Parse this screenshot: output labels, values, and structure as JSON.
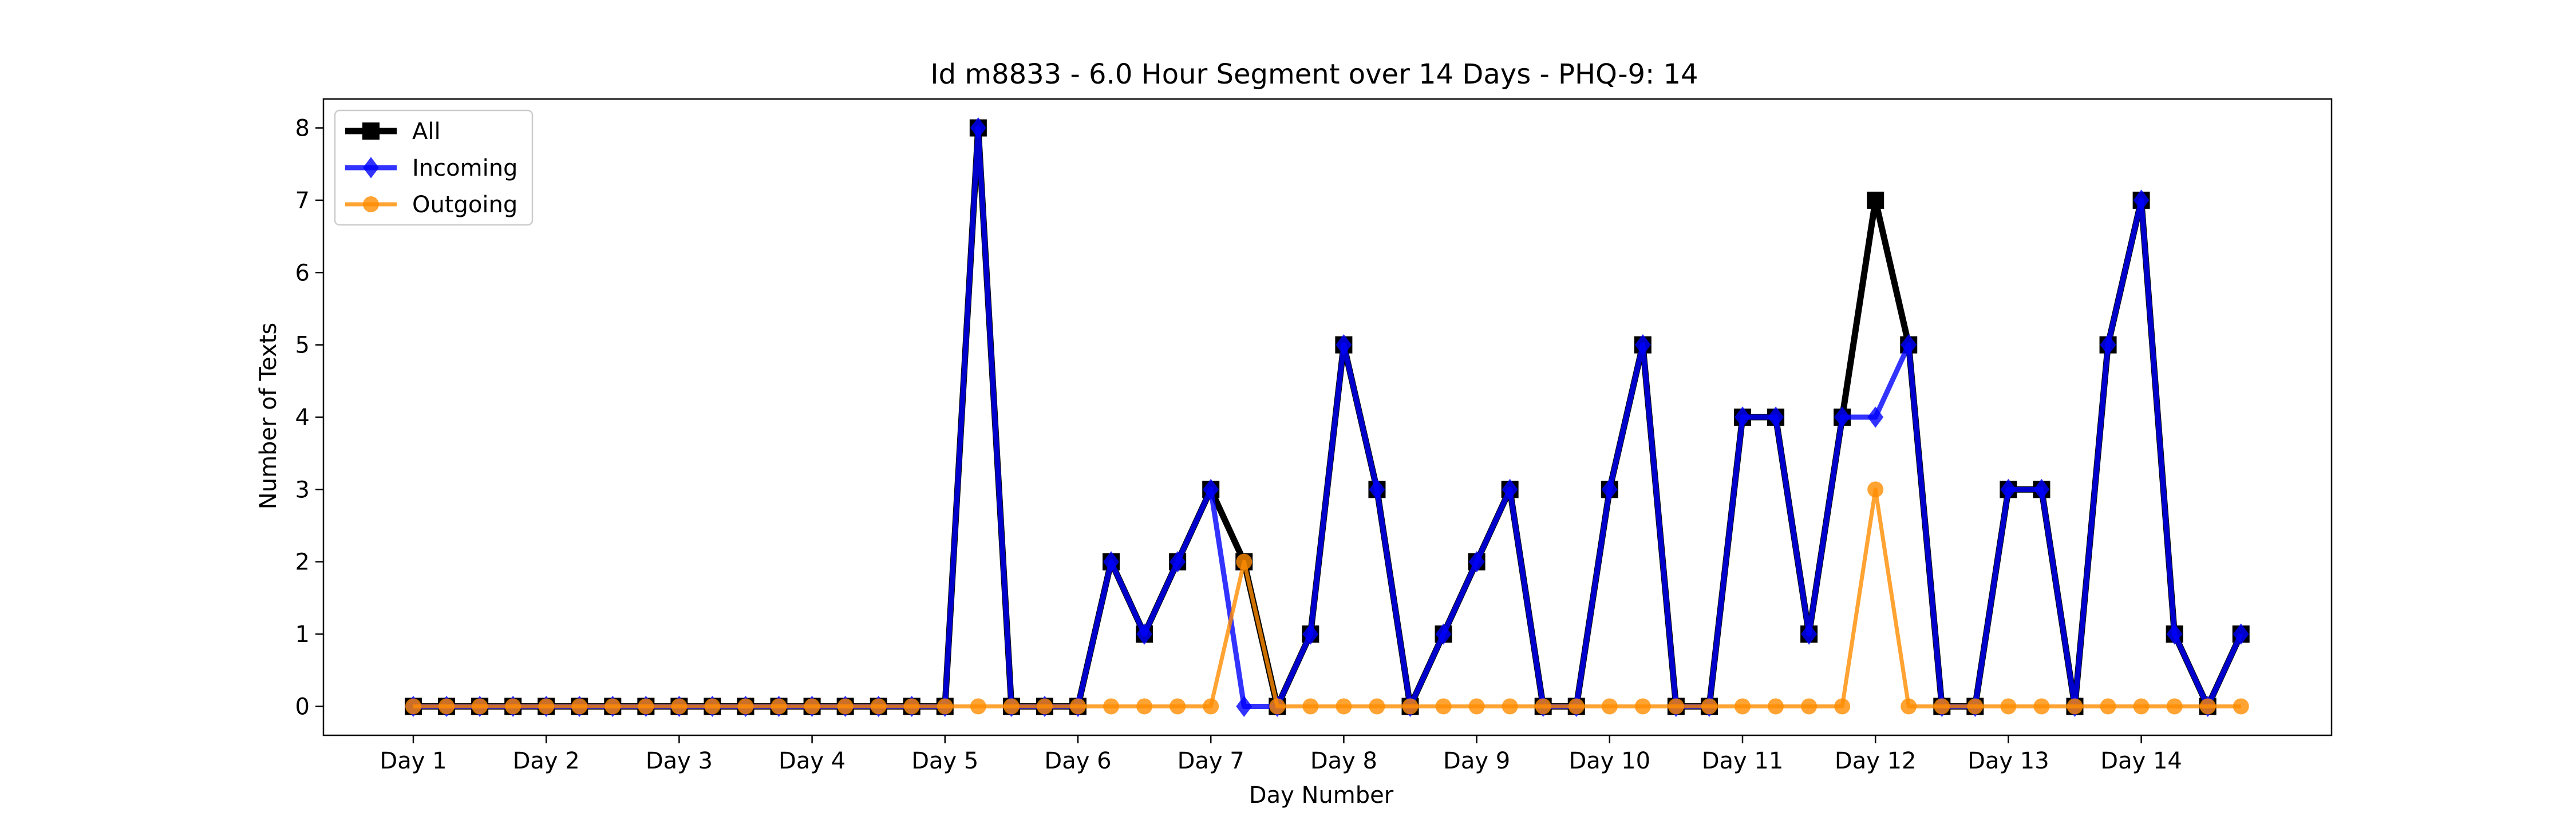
{
  "chart_data": {
    "type": "line",
    "title": "Id m8833 - 6.0 Hour Segment over 14 Days - PHQ-9: 14",
    "xlabel": "Day Number",
    "ylabel": "Number of Texts",
    "x_tick_labels": [
      "Day 1",
      "Day 2",
      "Day 3",
      "Day 4",
      "Day 5",
      "Day 6",
      "Day 7",
      "Day 8",
      "Day 9",
      "Day 10",
      "Day 11",
      "Day 12",
      "Day 13",
      "Day 14"
    ],
    "y_ticks": [
      0,
      1,
      2,
      3,
      4,
      5,
      6,
      7,
      8
    ],
    "ylim": [
      -0.4,
      8.4
    ],
    "grid": false,
    "legend_position": "top-left",
    "series": [
      {
        "name": "All",
        "color": "#000000",
        "marker": "square",
        "values": [
          0,
          0,
          0,
          0,
          0,
          0,
          0,
          0,
          0,
          0,
          0,
          0,
          0,
          0,
          0,
          0,
          0,
          8,
          0,
          0,
          0,
          2,
          1,
          2,
          3,
          2,
          0,
          1,
          5,
          3,
          0,
          1,
          2,
          3,
          0,
          0,
          3,
          5,
          0,
          0,
          4,
          4,
          1,
          4,
          7,
          5,
          0,
          0,
          3,
          3,
          0,
          5,
          7,
          1,
          0,
          1
        ]
      },
      {
        "name": "Incoming",
        "color": "#0000ff",
        "marker": "diamond",
        "values": [
          0,
          0,
          0,
          0,
          0,
          0,
          0,
          0,
          0,
          0,
          0,
          0,
          0,
          0,
          0,
          0,
          0,
          8,
          0,
          0,
          0,
          2,
          1,
          2,
          3,
          0,
          0,
          1,
          5,
          3,
          0,
          1,
          2,
          3,
          0,
          0,
          3,
          5,
          0,
          0,
          4,
          4,
          1,
          4,
          4,
          5,
          0,
          0,
          3,
          3,
          0,
          5,
          7,
          1,
          0,
          1
        ]
      },
      {
        "name": "Outgoing",
        "color": "#ff8c00",
        "marker": "circle",
        "values": [
          0,
          0,
          0,
          0,
          0,
          0,
          0,
          0,
          0,
          0,
          0,
          0,
          0,
          0,
          0,
          0,
          0,
          0,
          0,
          0,
          0,
          0,
          0,
          0,
          0,
          2,
          0,
          0,
          0,
          0,
          0,
          0,
          0,
          0,
          0,
          0,
          0,
          0,
          0,
          0,
          0,
          0,
          0,
          0,
          3,
          0,
          0,
          0,
          0,
          0,
          0,
          0,
          0,
          0,
          0,
          0
        ]
      }
    ]
  }
}
